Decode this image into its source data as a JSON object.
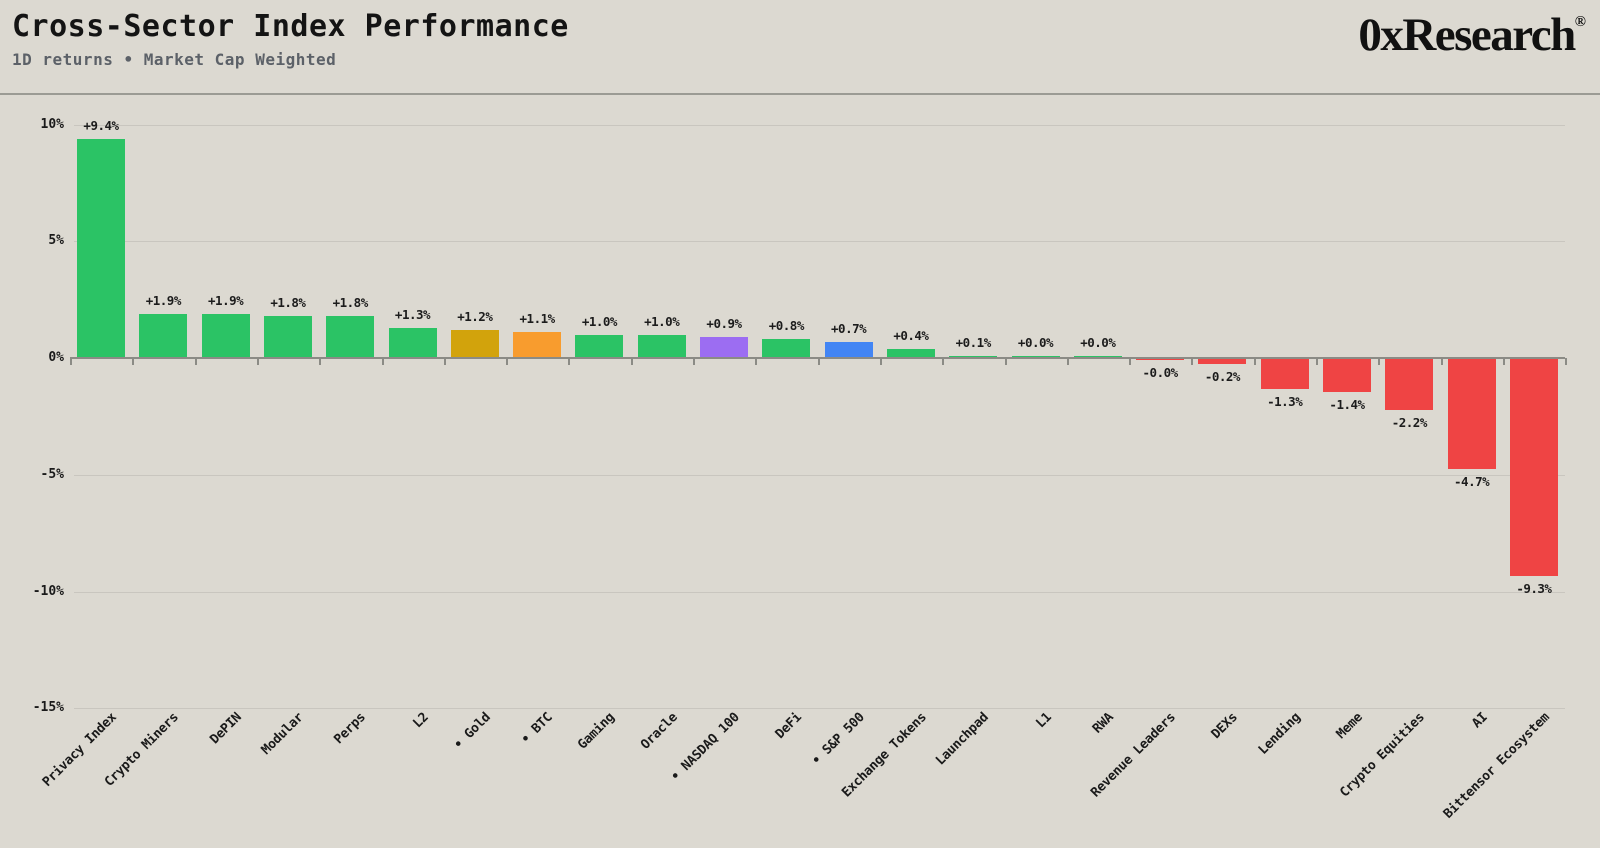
{
  "header": {
    "title": "Cross-Sector Index Performance",
    "subtitle": "1D returns • Market Cap Weighted",
    "logo": "0xResearch",
    "logo_mark": "®"
  },
  "chart_data": {
    "type": "bar",
    "title": "Cross-Sector Index Performance",
    "subtitle": "1D returns • Market Cap Weighted",
    "xlabel": "",
    "ylabel": "",
    "unit": "%",
    "ylim": [
      -15,
      10
    ],
    "grid": true,
    "legend": false,
    "yticks": [
      {
        "value": 10,
        "label": "10%"
      },
      {
        "value": 5,
        "label": "5%"
      },
      {
        "value": 0,
        "label": "0%"
      },
      {
        "value": -5,
        "label": "-5%"
      },
      {
        "value": -10,
        "label": "-10%"
      },
      {
        "value": -15,
        "label": "-15%"
      }
    ],
    "bars": [
      {
        "category": "Privacy Index",
        "tick_label": "Privacy Index",
        "value": 9.4,
        "display": "+9.4%",
        "color": "#2bc365"
      },
      {
        "category": "Crypto Miners",
        "tick_label": "Crypto Miners",
        "value": 1.9,
        "display": "+1.9%",
        "color": "#2bc365"
      },
      {
        "category": "DePIN",
        "tick_label": "DePIN",
        "value": 1.9,
        "display": "+1.9%",
        "color": "#2bc365"
      },
      {
        "category": "Modular",
        "tick_label": "Modular",
        "value": 1.8,
        "display": "+1.8%",
        "color": "#2bc365"
      },
      {
        "category": "Perps",
        "tick_label": "Perps",
        "value": 1.8,
        "display": "+1.8%",
        "color": "#2bc365"
      },
      {
        "category": "L2",
        "tick_label": "L2",
        "value": 1.3,
        "display": "+1.3%",
        "color": "#2bc365"
      },
      {
        "category": "Gold",
        "tick_label": "• Gold",
        "value": 1.2,
        "display": "+1.2%",
        "color": "#d2a30c"
      },
      {
        "category": "BTC",
        "tick_label": "• BTC",
        "value": 1.1,
        "display": "+1.1%",
        "color": "#f89c2e"
      },
      {
        "category": "Gaming",
        "tick_label": "Gaming",
        "value": 1.0,
        "display": "+1.0%",
        "color": "#2bc365"
      },
      {
        "category": "Oracle",
        "tick_label": "Oracle",
        "value": 1.0,
        "display": "+1.0%",
        "color": "#2bc365"
      },
      {
        "category": "NASDAQ 100",
        "tick_label": "• NASDAQ 100",
        "value": 0.9,
        "display": "+0.9%",
        "color": "#9c6df2"
      },
      {
        "category": "DeFi",
        "tick_label": "DeFi",
        "value": 0.8,
        "display": "+0.8%",
        "color": "#2bc365"
      },
      {
        "category": "S&P 500",
        "tick_label": "• S&P 500",
        "value": 0.7,
        "display": "+0.7%",
        "color": "#4285f4"
      },
      {
        "category": "Exchange Tokens",
        "tick_label": "Exchange Tokens",
        "value": 0.4,
        "display": "+0.4%",
        "color": "#2bc365"
      },
      {
        "category": "Launchpad",
        "tick_label": "Launchpad",
        "value": 0.1,
        "display": "+0.1%",
        "color": "#2bc365"
      },
      {
        "category": "L1",
        "tick_label": "L1",
        "value": 0.0,
        "display": "+0.0%",
        "color": "#2bc365"
      },
      {
        "category": "RWA",
        "tick_label": "RWA",
        "value": 0.0,
        "display": "+0.0%",
        "color": "#2bc365"
      },
      {
        "category": "Revenue Leaders",
        "tick_label": "Revenue Leaders",
        "value": -0.0,
        "display": "-0.0%",
        "color": "#ef4444"
      },
      {
        "category": "DEXs",
        "tick_label": "DEXs",
        "value": -0.2,
        "display": "-0.2%",
        "color": "#ef4444"
      },
      {
        "category": "Lending",
        "tick_label": "Lending",
        "value": -1.3,
        "display": "-1.3%",
        "color": "#ef4444"
      },
      {
        "category": "Meme",
        "tick_label": "Meme",
        "value": -1.4,
        "display": "-1.4%",
        "color": "#ef4444"
      },
      {
        "category": "Crypto Equities",
        "tick_label": "Crypto Equities",
        "value": -2.2,
        "display": "-2.2%",
        "color": "#ef4444"
      },
      {
        "category": "AI",
        "tick_label": "AI",
        "value": -4.7,
        "display": "-4.7%",
        "color": "#ef4444"
      },
      {
        "category": "Bittensor Ecosystem",
        "tick_label": "Bittensor Ecosystem",
        "value": -9.3,
        "display": "-9.3%",
        "color": "#ef4444"
      }
    ]
  },
  "palette": {
    "positive": "#2bc365",
    "negative": "#ef4444",
    "gold_benchmark": "#d2a30c",
    "btc_benchmark": "#f89c2e",
    "nasdaq_benchmark": "#9c6df2",
    "sp500_benchmark": "#4285f4",
    "background": "#dcd9d1",
    "gridline": "#c9c6bf",
    "axis": "#8b8b85",
    "title_text": "#141414",
    "subtitle_text": "#5c6168"
  }
}
